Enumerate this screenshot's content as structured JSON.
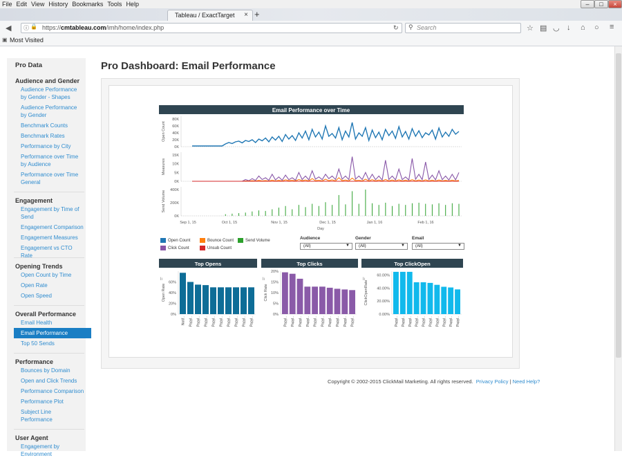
{
  "browser": {
    "menu": [
      "File",
      "Edit",
      "View",
      "History",
      "Bookmarks",
      "Tools",
      "Help"
    ],
    "tab_title": "Tableau / ExactTarget",
    "url_prefix": "https://",
    "url_domain": "cmtableau.com",
    "url_path": "/imh/home/index.php",
    "search_placeholder": "Search",
    "bookmark_label": "Most Visited"
  },
  "sidebar": {
    "title": "Pro Data",
    "sections": [
      {
        "title": "Audience and Gender",
        "items": [
          "Audience Performance by Gender - Shapes",
          "Audience Performance by Gender",
          "Benchmark Counts",
          "Benchmark Rates",
          "Performance by City",
          "Performance over Time by Audience",
          "Performance over Time General"
        ]
      },
      {
        "title": "Engagement",
        "items": [
          "Engagement by Time of Send",
          "Engagement Comparison",
          "Engagement Measures",
          "Engagement vs CTO Rate"
        ]
      },
      {
        "title": "Opening Trends",
        "items": [
          "Open Count by Time",
          "Open Rate",
          "Open Speed"
        ]
      },
      {
        "title": "Overall Performance",
        "items": [
          "Email Health",
          "Email Performance",
          "Top 50 Sends"
        ]
      },
      {
        "title": "Performance",
        "items": [
          "Bounces by Domain",
          "Open and Click Trends",
          "Performance Comparison",
          "Performance Plot",
          "Subject Line Performance"
        ]
      },
      {
        "title": "User Agent",
        "items": [
          "Engagement by Environment"
        ]
      }
    ],
    "active_item": "Email Performance"
  },
  "page_title": "Pro Dashboard: Email Performance",
  "footer": {
    "copyright": "Copyright © 2002-2015 ClickMail Marketing. All rights reserved.",
    "privacy": "Privacy Policy",
    "sep": "|",
    "help": "Need Help?"
  },
  "colors": {
    "header_bar": "#2f4551",
    "open": "#1f77b4",
    "bounce": "#ff7f0e",
    "send": "#2ca02c",
    "click": "#8856a7",
    "unsub": "#d62728",
    "top_opens": "#0e6d97",
    "top_clicks": "#8a5aa8",
    "top_clickopen": "#11b9ec",
    "link": "#2f8ccf",
    "active_bg": "#1a7ec4"
  },
  "filters": [
    {
      "label": "Audience",
      "value": "(All)"
    },
    {
      "label": "Gender",
      "value": "(All)"
    },
    {
      "label": "Email",
      "value": "(All)"
    }
  ],
  "legend": [
    {
      "name": "Open Count",
      "color_key": "open"
    },
    {
      "name": "Bounce Count",
      "color_key": "bounce"
    },
    {
      "name": "Send Volume",
      "color_key": "send"
    },
    {
      "name": "Click Count",
      "color_key": "click"
    },
    {
      "name": "Unsub Count",
      "color_key": "unsub"
    }
  ],
  "chart_data": [
    {
      "type": "line",
      "title": "Email Performance over Time",
      "xlabel": "Day",
      "x_ticks": [
        "Sep 1, 15",
        "Oct 1, 15",
        "Nov 1, 15",
        "Dec 1, 15",
        "Jan 1, 16",
        "Feb 1, 16"
      ],
      "panels": [
        {
          "ylabel": "Open Count",
          "yticks": [
            "0K",
            "20K",
            "40K",
            "60K",
            "80K"
          ],
          "ylim": [
            0,
            80000
          ],
          "series": [
            {
              "name": "Open Count",
              "values": [
                2000,
                2000,
                2000,
                2000,
                2000,
                2000,
                2000,
                2000,
                2000,
                2000,
                8000,
                12000,
                9000,
                14000,
                16000,
                11000,
                18000,
                15000,
                20000,
                12000,
                22000,
                17000,
                25000,
                14000,
                28000,
                19000,
                30000,
                15000,
                35000,
                22000,
                32000,
                18000,
                40000,
                25000,
                45000,
                20000,
                50000,
                28000,
                42000,
                22000,
                60000,
                30000,
                38000,
                25000,
                55000,
                20000,
                45000,
                28000,
                70000,
                22000,
                40000,
                30000,
                55000,
                18000,
                48000,
                26000,
                42000,
                20000,
                50000,
                32000,
                45000,
                24000,
                58000,
                28000,
                44000,
                22000,
                52000,
                30000,
                46000,
                26000,
                40000,
                34000,
                48000,
                22000,
                54000,
                28000,
                42000,
                30000,
                50000,
                36000,
                44000
              ]
            }
          ]
        },
        {
          "ylabel": "Measures",
          "yticks": [
            "0K",
            "5K",
            "10K",
            "15K"
          ],
          "ylim": [
            0,
            15000
          ],
          "series": [
            {
              "name": "Click Count",
              "values": [
                0,
                0,
                0,
                0,
                0,
                0,
                0,
                0,
                0,
                0,
                0,
                0,
                0,
                0,
                0,
                0,
                1000,
                300,
                1500,
                500,
                3000,
                1000,
                2000,
                500,
                4000,
                800,
                2500,
                600,
                3500,
                900,
                2000,
                600,
                5000,
                1000,
                3000,
                800,
                6000,
                1200,
                2500,
                900,
                4000,
                1500,
                3000,
                1000,
                7000,
                1200,
                3000,
                900,
                14000,
                1200,
                3000,
                1000,
                5000,
                800,
                4000,
                900,
                3000,
                700,
                12000,
                1000,
                3000,
                800,
                7000,
                900,
                2500,
                700,
                13000,
                1100,
                4000,
                900,
                11000,
                1000,
                3500,
                800,
                6000,
                900,
                3000,
                700,
                4000,
                800,
                5000
              ]
            },
            {
              "name": "Bounce Count",
              "values": [
                0,
                0,
                0,
                0,
                0,
                0,
                0,
                0,
                0,
                0,
                0,
                0,
                0,
                0,
                0,
                0,
                200,
                100,
                300,
                100,
                500,
                200,
                400,
                100,
                600,
                200,
                500,
                100,
                800,
                300,
                600,
                200,
                1000,
                300,
                700,
                200,
                1500,
                300,
                600,
                200,
                1200,
                300,
                800,
                200,
                2000,
                300,
                700,
                200,
                1800,
                300,
                600,
                200,
                1200,
                200,
                900,
                200,
                700,
                150,
                1000,
                200,
                700,
                150,
                800,
                200,
                600,
                150,
                900,
                200,
                700,
                150,
                800,
                200,
                600,
                150,
                700,
                200,
                500,
                150,
                600,
                200,
                500
              ]
            },
            {
              "name": "Unsub Count",
              "values": [
                0,
                0,
                0,
                0,
                0,
                0,
                0,
                0,
                0,
                0,
                0,
                0,
                0,
                0,
                0,
                0,
                0,
                0,
                0,
                0,
                0,
                0,
                0,
                0,
                0,
                0,
                0,
                0,
                0,
                0,
                0,
                0,
                0,
                0,
                0,
                0,
                0,
                0,
                0,
                0,
                0,
                0,
                0,
                0,
                0,
                0,
                0,
                0,
                0,
                0,
                0,
                0,
                0,
                0,
                0,
                0,
                0,
                0,
                0,
                0,
                0,
                0,
                0,
                0,
                0,
                0,
                0,
                0,
                0,
                0,
                0,
                0,
                0,
                0,
                0,
                0,
                0,
                0,
                0,
                0,
                0
              ]
            }
          ]
        },
        {
          "ylabel": "Send Volume",
          "yticks": [
            "0K",
            "200K",
            "400K"
          ],
          "ylim": [
            0,
            480000
          ],
          "series": [
            {
              "name": "Send Volume",
              "values": [
                0,
                0,
                0,
                0,
                0,
                0,
                0,
                0,
                0,
                0,
                30000,
                0,
                40000,
                0,
                50000,
                0,
                60000,
                0,
                80000,
                0,
                100000,
                0,
                90000,
                0,
                120000,
                0,
                150000,
                0,
                180000,
                0,
                120000,
                0,
                200000,
                0,
                160000,
                0,
                220000,
                0,
                180000,
                0,
                250000,
                0,
                200000,
                0,
                380000,
                0,
                210000,
                0,
                450000,
                0,
                220000,
                0,
                480000,
                0,
                230000,
                0,
                200000,
                0,
                240000,
                0,
                180000,
                0,
                220000,
                0,
                200000,
                0,
                230000,
                0,
                240000,
                0,
                220000,
                0,
                210000,
                0,
                230000,
                0,
                200000,
                0,
                230000,
                0,
                220000
              ]
            }
          ]
        }
      ]
    },
    {
      "type": "bar",
      "title": "Top Opens",
      "ylabel": "Open Rate",
      "yticks": [
        "0%",
        "20%",
        "40%",
        "60%"
      ],
      "ylim": [
        0,
        80
      ],
      "categories": [
        "Notif..",
        "Papyl..",
        "Papyl..",
        "Papyl..",
        "Papyl..",
        "Papyl..",
        "Papyl..",
        "Papyl..",
        "Papyl..",
        "Papyl.."
      ],
      "values": [
        77,
        60,
        55,
        54,
        50,
        50,
        50,
        50,
        50,
        50
      ]
    },
    {
      "type": "bar",
      "title": "Top Clicks",
      "ylabel": "Click Rate",
      "yticks": [
        "0%",
        "5%",
        "10%",
        "15%",
        "20%"
      ],
      "ylim": [
        0,
        20
      ],
      "categories": [
        "Papyl..",
        "Papyl..",
        "Papyl..",
        "Papyl..",
        "Papyl..",
        "Papyl..",
        "Papyl..",
        "Papyl..",
        "Papyl..",
        "Papyl.."
      ],
      "values": [
        19.5,
        18.8,
        16.5,
        12.8,
        12.8,
        12.8,
        12.3,
        11.8,
        11.5,
        11.2
      ]
    },
    {
      "type": "bar",
      "title": "Top ClickOpen",
      "ylabel": "ClickOpenRate",
      "yticks": [
        "0.00%",
        "20.00%",
        "40.00%",
        "60.00%"
      ],
      "ylim": [
        0,
        66
      ],
      "categories": [
        "Papyl..",
        "Papyl..",
        "Papyl..",
        "Papyl..",
        "Papyl..",
        "Papyl..",
        "Papyl..",
        "Papyl..",
        "Papyl..",
        "Papyl.."
      ],
      "values": [
        65,
        65,
        65,
        49,
        49,
        48,
        45,
        42,
        41,
        38
      ]
    }
  ]
}
